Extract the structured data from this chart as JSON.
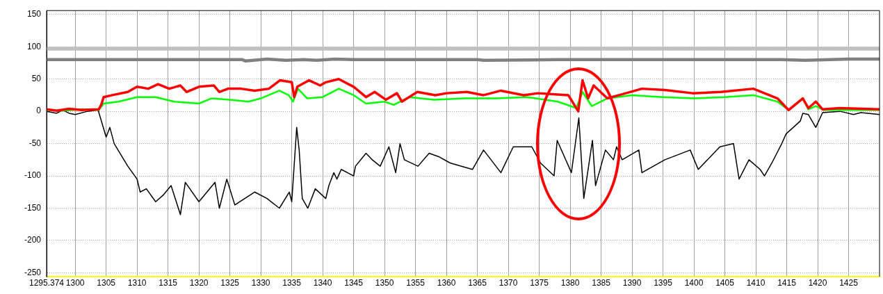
{
  "chart_data": {
    "type": "line",
    "xlim": [
      1295.374,
      1430
    ],
    "ylim": [
      -256,
      156
    ],
    "xticks": [
      {
        "value": 1295.374,
        "label": "1295.374"
      },
      1300,
      1305,
      1310,
      1315,
      1320,
      1325,
      1330,
      1335,
      1340,
      1345,
      1350,
      1355,
      1360,
      1365,
      1370,
      1375,
      1380,
      1385,
      1390,
      1395,
      1400,
      1405,
      1410,
      1415,
      1420,
      1425
    ],
    "yticks": [
      -250,
      -200,
      -150,
      -100,
      -50,
      0,
      50,
      100,
      150
    ],
    "grid": true,
    "legend": false,
    "marker": "none",
    "line_style": "solid",
    "series": [
      {
        "color": "#c0c0c0",
        "x": [
          1295.374,
          1430
        ],
        "values": [
          97,
          97
        ]
      },
      {
        "color": "#808080",
        "x": [
          1295.374,
          1305,
          1313,
          1327,
          1327.5,
          1331,
          1334,
          1337,
          1339,
          1342,
          1345,
          1365,
          1366,
          1378,
          1414,
          1418,
          1425,
          1430
        ],
        "values": [
          80,
          80,
          80,
          80,
          78,
          81,
          79,
          80,
          79,
          81,
          80,
          80,
          79,
          80,
          80,
          79,
          81,
          81
        ]
      },
      {
        "color": "#ff0000",
        "x": [
          1295.374,
          1297,
          1299,
          1301,
          1303.8,
          1304.2,
          1304.6,
          1306,
          1308.5,
          1310,
          1311.8,
          1313.4,
          1315.2,
          1317,
          1318,
          1320,
          1322.4,
          1323.3,
          1324.7,
          1326.8,
          1329,
          1331.3,
          1333.1,
          1335,
          1335.4,
          1335.9,
          1337.8,
          1339.6,
          1340.5,
          1342.6,
          1345,
          1347,
          1348.4,
          1350.2,
          1352,
          1352.8,
          1355.3,
          1358.2,
          1360,
          1363.3,
          1366,
          1368.8,
          1372.5,
          1374.8,
          1379.7,
          1381.3,
          1382,
          1382.9,
          1383.8,
          1386,
          1387.9,
          1391.6,
          1395.3,
          1399.8,
          1404.4,
          1409.6,
          1413.5,
          1415.3,
          1417.6,
          1418.5,
          1419.7,
          1420.8,
          1423.6,
          1430
        ],
        "values": [
          3,
          1,
          4,
          2,
          3,
          10,
          22,
          25,
          30,
          38,
          35,
          42,
          35,
          40,
          30,
          38,
          40,
          30,
          35,
          35,
          32,
          35,
          48,
          45,
          22,
          38,
          48,
          40,
          45,
          50,
          38,
          22,
          30,
          18,
          28,
          15,
          30,
          25,
          28,
          30,
          25,
          32,
          25,
          28,
          25,
          0,
          48,
          20,
          40,
          20,
          25,
          35,
          33,
          28,
          30,
          35,
          20,
          2,
          20,
          5,
          15,
          3,
          5,
          3
        ]
      },
      {
        "color": "#00ff00",
        "x": [
          1295.374,
          1298,
          1301,
          1303.8,
          1304.6,
          1307,
          1310,
          1313,
          1316,
          1320,
          1322,
          1325,
          1328,
          1330,
          1333,
          1334.5,
          1335.2,
          1336,
          1337.5,
          1340,
          1342.6,
          1345,
          1347,
          1350,
          1351.5,
          1354,
          1358,
          1363,
          1368,
          1373,
          1378,
          1381,
          1382,
          1383.5,
          1386,
          1390,
          1395,
          1400,
          1405,
          1409.6,
          1413.5,
          1415.3,
          1417.6,
          1418.5,
          1419.7,
          1421,
          1430
        ],
        "values": [
          2,
          1,
          3,
          2,
          12,
          15,
          22,
          22,
          15,
          12,
          20,
          18,
          15,
          20,
          32,
          25,
          15,
          35,
          20,
          22,
          35,
          25,
          12,
          15,
          10,
          22,
          18,
          20,
          20,
          22,
          15,
          5,
          30,
          8,
          20,
          25,
          22,
          20,
          22,
          25,
          15,
          2,
          20,
          3,
          8,
          2,
          2
        ]
      },
      {
        "color": "#000000",
        "x": [
          1295.374,
          1297,
          1298,
          1299,
          1300,
          1302,
          1303.7,
          1305,
          1305.6,
          1306.3,
          1308.5,
          1310,
          1310.5,
          1311.5,
          1313,
          1314.2,
          1315.5,
          1317,
          1317.8,
          1320,
          1322.6,
          1323.3,
          1324.5,
          1325.8,
          1329,
          1331,
          1333,
          1334.6,
          1335,
          1335.8,
          1336.2,
          1336.7,
          1337.6,
          1338.8,
          1340.5,
          1341,
          1341.8,
          1342.3,
          1343,
          1345,
          1345.3,
          1347,
          1348,
          1349.3,
          1350.7,
          1351.8,
          1352.5,
          1353.2,
          1355.4,
          1357.2,
          1358.7,
          1360.6,
          1364.2,
          1366,
          1368.8,
          1370.8,
          1373.8,
          1375.2,
          1377.4,
          1377.9,
          1380.2,
          1381.4,
          1382.2,
          1383.6,
          1384.1,
          1385.7,
          1387,
          1387.5,
          1388.4,
          1391.1,
          1391.6,
          1395.3,
          1399.4,
          1400.7,
          1404.2,
          1406.4,
          1407.3,
          1408.9,
          1410.7,
          1411.4,
          1412.6,
          1414.2,
          1414.9,
          1417.2,
          1417.6,
          1418.5,
          1419.7,
          1420.8,
          1423.6,
          1425.8,
          1427,
          1430
        ],
        "values": [
          0,
          -3,
          2,
          -3,
          -5,
          0,
          2,
          -40,
          -25,
          -50,
          -85,
          -105,
          -125,
          -120,
          -140,
          -130,
          -115,
          -160,
          -110,
          -140,
          -110,
          -150,
          -105,
          -145,
          -125,
          -135,
          -150,
          -125,
          -140,
          -25,
          -60,
          -135,
          -150,
          -120,
          -135,
          -115,
          -95,
          -105,
          -90,
          -100,
          -85,
          -65,
          -75,
          -85,
          -55,
          -95,
          -50,
          -75,
          -85,
          -65,
          -70,
          -80,
          -90,
          -60,
          -95,
          -55,
          -55,
          -80,
          -100,
          -45,
          -95,
          -10,
          -135,
          -45,
          -115,
          -60,
          -75,
          -55,
          -75,
          -60,
          -95,
          -75,
          -60,
          -90,
          -55,
          -50,
          -105,
          -75,
          -90,
          -100,
          -80,
          -50,
          -35,
          -15,
          -3,
          -5,
          -25,
          -2,
          0,
          -5,
          -2,
          -5
        ]
      }
    ]
  }
}
